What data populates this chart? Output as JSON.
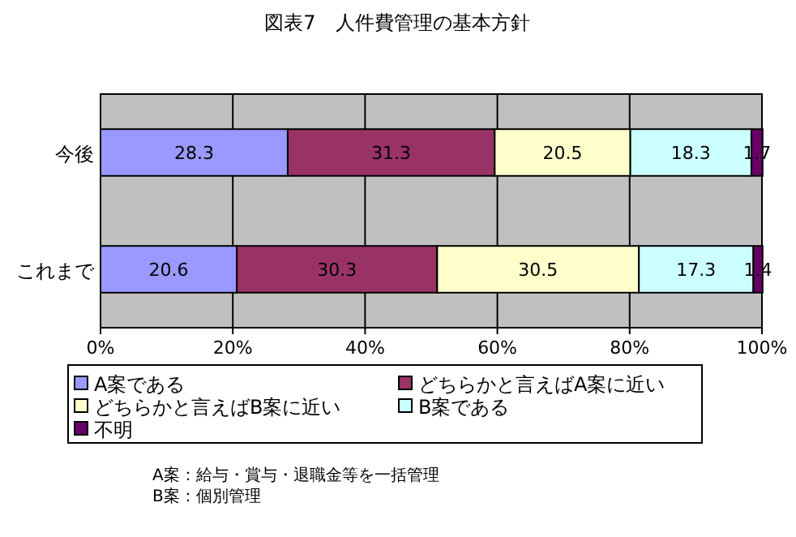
{
  "chart_data": {
    "type": "bar",
    "orientation": "horizontal",
    "stacked": true,
    "title": "図表7　人件費管理の基本方針",
    "categories": [
      "今後",
      "これまで"
    ],
    "series": [
      {
        "name": "A案である",
        "color": "#9999ff",
        "values": [
          28.3,
          20.6
        ]
      },
      {
        "name": "どちらかと言えばA案に近い",
        "color": "#993366",
        "values": [
          31.3,
          30.3
        ]
      },
      {
        "name": "どちらかと言えばB案に近い",
        "color": "#ffffcc",
        "values": [
          20.5,
          30.5
        ]
      },
      {
        "name": "B案である",
        "color": "#ccffff",
        "values": [
          18.3,
          17.3
        ]
      },
      {
        "name": "不明",
        "color": "#660066",
        "values": [
          1.7,
          1.4
        ]
      }
    ],
    "xlim": [
      0,
      100
    ],
    "xticks": [
      {
        "value": 0,
        "label": "0%"
      },
      {
        "value": 20,
        "label": "20%"
      },
      {
        "value": 40,
        "label": "40%"
      },
      {
        "value": 60,
        "label": "60%"
      },
      {
        "value": 80,
        "label": "80%"
      },
      {
        "value": 100,
        "label": "100%"
      }
    ],
    "grid": "x",
    "legend": "bottom",
    "data_labels": true,
    "annotations": [
      "A案：給与・賞与・退職金等を一括管理",
      "B案：個別管理"
    ]
  }
}
